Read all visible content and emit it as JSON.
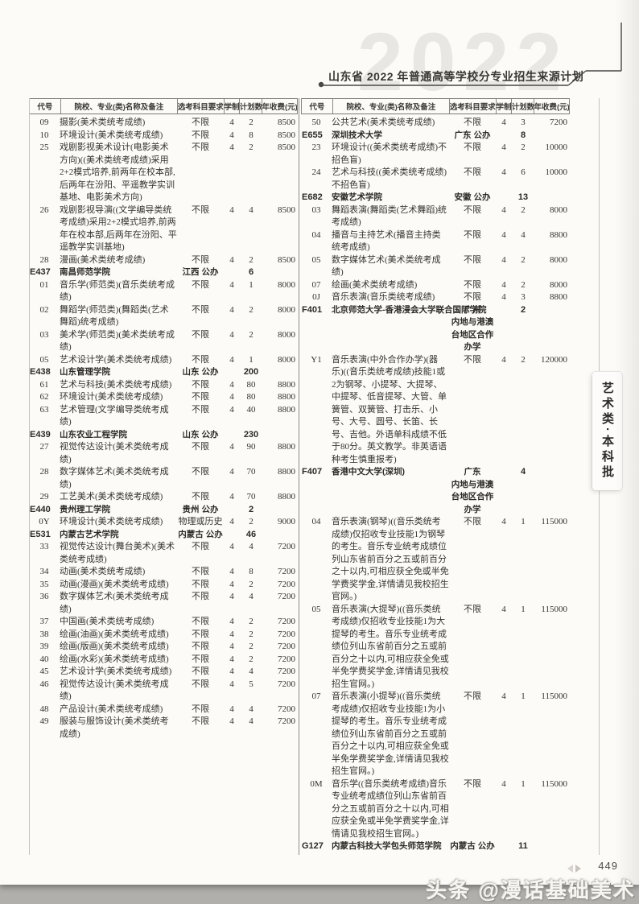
{
  "page": {
    "title": "山东省 2022 年普通高等学校分专业招生来源计划",
    "ghost_year": "2022",
    "side_tab": "艺术类·本科批",
    "page_number": "449",
    "watermark": "头条 @漫话基础美术"
  },
  "table": {
    "headers": {
      "code": "代号",
      "name": "院校、专业(类)名称及备注",
      "req": "选考科目要求",
      "years": "学制",
      "count": "计划数",
      "fee": "年收费(元)"
    },
    "left_rows": [
      {
        "type": "major",
        "code": "09",
        "name": "摄影(美术类统考成绩)",
        "req": "不限",
        "years": "4",
        "count": "2",
        "fee": "8500"
      },
      {
        "type": "major",
        "code": "10",
        "name": "环境设计(美术类统考成绩)",
        "req": "不限",
        "years": "4",
        "count": "8",
        "fee": "8500"
      },
      {
        "type": "major",
        "code": "25",
        "name": "戏剧影视美术设计(电影美术方向)((美术类统考成绩)采用2+2模式培养,前两年在校本部,后两年在汾阳、平遥教学实训基地、电影美术方向)",
        "req": "不限",
        "years": "4",
        "count": "2",
        "fee": "8500"
      },
      {
        "type": "major",
        "code": "26",
        "name": "戏剧影视导演((文学编导类统考成绩)采用2+2模式培养,前两年在校本部,后两年在汾阳、平遥教学实训基地)",
        "req": "不限",
        "years": "4",
        "count": "4",
        "fee": "8500"
      },
      {
        "type": "major",
        "code": "28",
        "name": "漫画(美术类统考成绩)",
        "req": "不限",
        "years": "4",
        "count": "2",
        "fee": "8500"
      },
      {
        "type": "school",
        "code": "E437",
        "name": "南昌师范学院",
        "req": "江西 公办",
        "years": "",
        "count": "6",
        "fee": ""
      },
      {
        "type": "major",
        "code": "01",
        "name": "音乐学(师范类)(音乐类统考成绩)",
        "req": "不限",
        "years": "4",
        "count": "1",
        "fee": "8000"
      },
      {
        "type": "major",
        "code": "02",
        "name": "舞蹈学(师范类)(舞蹈类(艺术舞蹈)统考成绩)",
        "req": "不限",
        "years": "4",
        "count": "2",
        "fee": "8000"
      },
      {
        "type": "major",
        "code": "03",
        "name": "美术学(师范类)(美术类统考成绩)",
        "req": "不限",
        "years": "4",
        "count": "2",
        "fee": "8000"
      },
      {
        "type": "major",
        "code": "05",
        "name": "艺术设计学(美术类统考成绩)",
        "req": "不限",
        "years": "4",
        "count": "1",
        "fee": "8000"
      },
      {
        "type": "school",
        "code": "E438",
        "name": "山东管理学院",
        "req": "山东 公办",
        "years": "",
        "count": "200",
        "fee": ""
      },
      {
        "type": "major",
        "code": "61",
        "name": "艺术与科技(美术类统考成绩)",
        "req": "不限",
        "years": "4",
        "count": "80",
        "fee": "8800"
      },
      {
        "type": "major",
        "code": "62",
        "name": "环境设计(美术类统考成绩)",
        "req": "不限",
        "years": "4",
        "count": "80",
        "fee": "8800"
      },
      {
        "type": "major",
        "code": "63",
        "name": "艺术管理(文学编导类统考成绩)",
        "req": "不限",
        "years": "4",
        "count": "40",
        "fee": "8800"
      },
      {
        "type": "school",
        "code": "E439",
        "name": "山东农业工程学院",
        "req": "山东 公办",
        "years": "",
        "count": "230",
        "fee": ""
      },
      {
        "type": "major",
        "code": "27",
        "name": "视觉传达设计(美术类统考成绩)",
        "req": "不限",
        "years": "4",
        "count": "90",
        "fee": "8800"
      },
      {
        "type": "major",
        "code": "28",
        "name": "数字媒体艺术(美术类统考成绩)",
        "req": "不限",
        "years": "4",
        "count": "70",
        "fee": "8800"
      },
      {
        "type": "major",
        "code": "29",
        "name": "工艺美术(美术类统考成绩)",
        "req": "不限",
        "years": "4",
        "count": "70",
        "fee": "8800"
      },
      {
        "type": "school",
        "code": "E440",
        "name": "贵州理工学院",
        "req": "贵州 公办",
        "years": "",
        "count": "2",
        "fee": ""
      },
      {
        "type": "major",
        "code": "0Y",
        "name": "环境设计(美术类统考成绩)",
        "req": "物理或历史",
        "years": "4",
        "count": "2",
        "fee": "9000"
      },
      {
        "type": "school",
        "code": "E531",
        "name": "内蒙古艺术学院",
        "req": "内蒙古 公办",
        "years": "",
        "count": "46",
        "fee": ""
      },
      {
        "type": "major",
        "code": "33",
        "name": "视觉传达设计(舞台美术)(美术类统考成绩)",
        "req": "不限",
        "years": "4",
        "count": "4",
        "fee": "7200"
      },
      {
        "type": "major",
        "code": "34",
        "name": "动画(美术类统考成绩)",
        "req": "不限",
        "years": "4",
        "count": "8",
        "fee": "7200"
      },
      {
        "type": "major",
        "code": "35",
        "name": "动画(漫画)(美术类统考成绩)",
        "req": "不限",
        "years": "4",
        "count": "2",
        "fee": "7200"
      },
      {
        "type": "major",
        "code": "36",
        "name": "数字媒体艺术(美术类统考成绩)",
        "req": "不限",
        "years": "4",
        "count": "4",
        "fee": "7200"
      },
      {
        "type": "major",
        "code": "37",
        "name": "中国画(美术类统考成绩)",
        "req": "不限",
        "years": "4",
        "count": "2",
        "fee": "7200"
      },
      {
        "type": "major",
        "code": "38",
        "name": "绘画(油画)(美术类统考成绩)",
        "req": "不限",
        "years": "4",
        "count": "2",
        "fee": "7200"
      },
      {
        "type": "major",
        "code": "39",
        "name": "绘画(版画)(美术类统考成绩)",
        "req": "不限",
        "years": "4",
        "count": "2",
        "fee": "7200"
      },
      {
        "type": "major",
        "code": "40",
        "name": "绘画(水彩)(美术类统考成绩)",
        "req": "不限",
        "years": "4",
        "count": "2",
        "fee": "7200"
      },
      {
        "type": "major",
        "code": "45",
        "name": "艺术设计学(美术类统考成绩)",
        "req": "不限",
        "years": "4",
        "count": "4",
        "fee": "7200"
      },
      {
        "type": "major",
        "code": "46",
        "name": "视觉传达设计(美术类统考成绩)",
        "req": "不限",
        "years": "4",
        "count": "5",
        "fee": "7200"
      },
      {
        "type": "major",
        "code": "48",
        "name": "产品设计(美术类统考成绩)",
        "req": "不限",
        "years": "4",
        "count": "4",
        "fee": "7200"
      },
      {
        "type": "major",
        "code": "49",
        "name": "服装与服饰设计(美术类统考成绩)",
        "req": "不限",
        "years": "4",
        "count": "4",
        "fee": "7200"
      }
    ],
    "right_rows": [
      {
        "type": "major",
        "code": "50",
        "name": "公共艺术(美术类统考成绩)",
        "req": "不限",
        "years": "4",
        "count": "3",
        "fee": "7200"
      },
      {
        "type": "school",
        "code": "E655",
        "name": "深圳技术大学",
        "req": "广东 公办",
        "years": "",
        "count": "8",
        "fee": ""
      },
      {
        "type": "major",
        "code": "23",
        "name": "环境设计((美术类统考成绩)不招色盲)",
        "req": "不限",
        "years": "4",
        "count": "2",
        "fee": "10000"
      },
      {
        "type": "major",
        "code": "24",
        "name": "艺术与科技((美术类统考成绩)不招色盲)",
        "req": "不限",
        "years": "4",
        "count": "6",
        "fee": "10000"
      },
      {
        "type": "school",
        "code": "E682",
        "name": "安徽艺术学院",
        "req": "安徽 公办",
        "years": "",
        "count": "13",
        "fee": ""
      },
      {
        "type": "major",
        "code": "03",
        "name": "舞蹈表演(舞蹈类(艺术舞蹈)统考成绩)",
        "req": "不限",
        "years": "4",
        "count": "2",
        "fee": "8000"
      },
      {
        "type": "major",
        "code": "04",
        "name": "播音与主持艺术(播音主持类统考成绩)",
        "req": "不限",
        "years": "4",
        "count": "4",
        "fee": "8800"
      },
      {
        "type": "major",
        "code": "05",
        "name": "数字媒体艺术(美术类统考成绩)",
        "req": "不限",
        "years": "4",
        "count": "2",
        "fee": "8000"
      },
      {
        "type": "major",
        "code": "07",
        "name": "绘画(美术类统考成绩)",
        "req": "不限",
        "years": "4",
        "count": "2",
        "fee": "8000"
      },
      {
        "type": "major",
        "code": "0J",
        "name": "音乐表演(音乐类统考成绩)",
        "req": "不限",
        "years": "4",
        "count": "3",
        "fee": "8800"
      },
      {
        "type": "school",
        "code": "F401",
        "name": "北京师范大学-香港浸会大学联合国际学院",
        "req": "广东\n内地与港澳台地区合作办学",
        "years": "",
        "count": "2",
        "fee": ""
      },
      {
        "type": "major",
        "code": "Y1",
        "name": "音乐表演(中外合作办学)(器乐)((音乐类统考成绩)技能1或2为钢琴、小提琴、大提琴、中提琴、低音提琴、大管、单簧管、双簧管、打击乐、小号、大号、圆号、长笛、长号、吉他。外语单科成绩不低于80分。英文教学。非英语语种考生慎重报考)",
        "req": "不限",
        "years": "4",
        "count": "2",
        "fee": "120000"
      },
      {
        "type": "school",
        "code": "F407",
        "name": "香港中文大学(深圳)",
        "req": "广东\n内地与港澳台地区合作办学",
        "years": "",
        "count": "4",
        "fee": ""
      },
      {
        "type": "major",
        "code": "04",
        "name": "音乐表演(钢琴)((音乐类统考成绩)仅招收专业技能1为钢琴的考生。音乐专业统考成绩位列山东省前百分之五或前百分之十以内,可相应获全免或半免学费奖学金,详情请见我校招生官网。)",
        "req": "不限",
        "years": "4",
        "count": "1",
        "fee": "115000"
      },
      {
        "type": "major",
        "code": "05",
        "name": "音乐表演(大提琴)((音乐类统考成绩)仅招收专业技能1为大提琴的考生。音乐专业统考成绩位列山东省前百分之五或前百分之十以内,可相应获全免或半免学费奖学金,详情请见我校招生官网。)",
        "req": "不限",
        "years": "4",
        "count": "1",
        "fee": "115000"
      },
      {
        "type": "major",
        "code": "07",
        "name": "音乐表演(小提琴)((音乐类统考成绩)仅招收专业技能1为小提琴的考生。音乐专业统考成绩位列山东省前百分之五或前百分之十以内,可相应获全免或半免学费奖学金,详情请见我校招生官网。)",
        "req": "不限",
        "years": "4",
        "count": "1",
        "fee": "115000"
      },
      {
        "type": "major",
        "code": "0M",
        "name": "音乐学((音乐类统考成绩)音乐专业统考成绩位列山东省前百分之五或前百分之十以内,可相应获全免或半免学费奖学金,详情请见我校招生官网。)",
        "req": "不限",
        "years": "4",
        "count": "1",
        "fee": "115000"
      },
      {
        "type": "school",
        "code": "G127",
        "name": "内蒙古科技大学包头师范学院",
        "req": "内蒙古 公办",
        "years": "",
        "count": "11",
        "fee": ""
      }
    ]
  }
}
